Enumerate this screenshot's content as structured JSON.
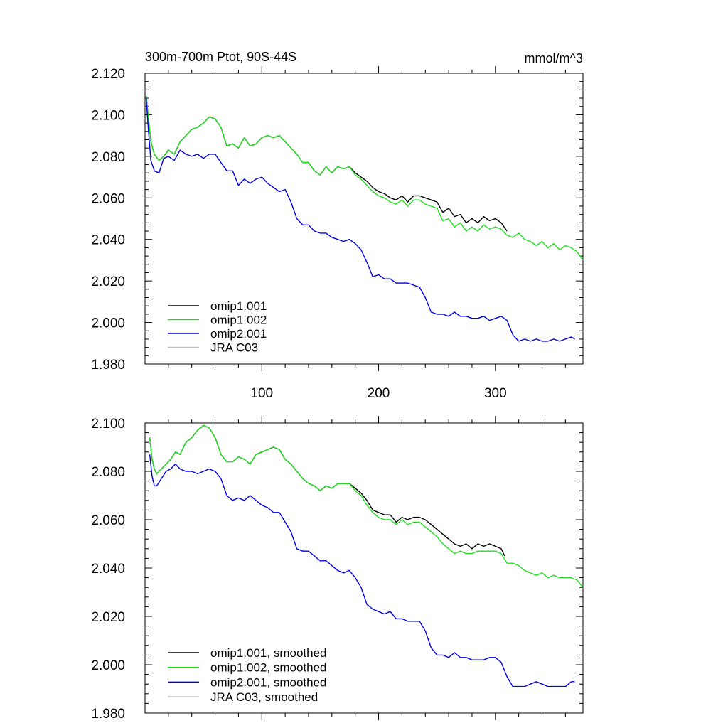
{
  "chart_data": [
    {
      "type": "line",
      "title": "300m-700m Ptot, 90S-44S",
      "units": "mmol/m^3",
      "xlim": [
        0,
        375
      ],
      "ylim": [
        1.98,
        2.12
      ],
      "yticks": [
        1.98,
        2.0,
        2.02,
        2.04,
        2.06,
        2.08,
        2.1,
        2.12
      ],
      "yticklabels": [
        "1.980",
        "2.000",
        "2.020",
        "2.040",
        "2.060",
        "2.080",
        "2.100",
        "2.120"
      ],
      "xticks": [
        100,
        200,
        300
      ],
      "xticklabels": [
        "100",
        "200",
        "300"
      ],
      "grid": false,
      "legend_position": "bottom-left",
      "series": [
        {
          "name": "omip1.001",
          "color": "#000000",
          "x": [
            1,
            3,
            5,
            8,
            12,
            16,
            20,
            25,
            30,
            35,
            40,
            45,
            50,
            55,
            60,
            65,
            70,
            75,
            80,
            85,
            90,
            95,
            100,
            105,
            110,
            115,
            120,
            125,
            130,
            135,
            140,
            145,
            150,
            155,
            160,
            165,
            170,
            175,
            180,
            185,
            190,
            195,
            200,
            205,
            210,
            215,
            220,
            225,
            230,
            235,
            240,
            245,
            250,
            255,
            260,
            265,
            270,
            275,
            280,
            285,
            290,
            295,
            300,
            305,
            310
          ],
          "y": [
            2.109,
            2.098,
            2.087,
            2.081,
            2.078,
            2.08,
            2.083,
            2.081,
            2.087,
            2.09,
            2.093,
            2.094,
            2.096,
            2.099,
            2.098,
            2.094,
            2.085,
            2.086,
            2.084,
            2.089,
            2.085,
            2.086,
            2.089,
            2.09,
            2.089,
            2.09,
            2.087,
            2.084,
            2.081,
            2.077,
            2.077,
            2.073,
            2.071,
            2.075,
            2.072,
            2.075,
            2.074,
            2.075,
            2.072,
            2.07,
            2.068,
            2.065,
            2.063,
            2.062,
            2.06,
            2.059,
            2.061,
            2.058,
            2.061,
            2.061,
            2.06,
            2.059,
            2.058,
            2.053,
            2.055,
            2.051,
            2.052,
            2.048,
            2.05,
            2.048,
            2.051,
            2.049,
            2.05,
            2.048,
            2.044
          ]
        },
        {
          "name": "omip1.002",
          "color": "#1ee11e",
          "x": [
            1,
            3,
            5,
            8,
            12,
            16,
            20,
            25,
            30,
            35,
            40,
            45,
            50,
            55,
            60,
            65,
            70,
            75,
            80,
            85,
            90,
            95,
            100,
            105,
            110,
            115,
            120,
            125,
            130,
            135,
            140,
            145,
            150,
            155,
            160,
            165,
            170,
            175,
            180,
            185,
            190,
            195,
            200,
            205,
            210,
            215,
            220,
            225,
            230,
            235,
            240,
            245,
            250,
            255,
            260,
            265,
            270,
            275,
            280,
            285,
            290,
            295,
            300,
            305,
            310,
            315,
            320,
            325,
            330,
            335,
            340,
            345,
            350,
            355,
            360,
            365,
            370,
            375
          ],
          "y": [
            2.109,
            2.098,
            2.087,
            2.081,
            2.078,
            2.08,
            2.083,
            2.081,
            2.087,
            2.09,
            2.093,
            2.094,
            2.096,
            2.099,
            2.098,
            2.094,
            2.085,
            2.086,
            2.084,
            2.089,
            2.085,
            2.086,
            2.089,
            2.09,
            2.089,
            2.09,
            2.087,
            2.084,
            2.081,
            2.077,
            2.077,
            2.073,
            2.071,
            2.075,
            2.072,
            2.075,
            2.074,
            2.075,
            2.071,
            2.069,
            2.066,
            2.063,
            2.061,
            2.06,
            2.058,
            2.057,
            2.059,
            2.056,
            2.059,
            2.059,
            2.057,
            2.056,
            2.055,
            2.049,
            2.05,
            2.046,
            2.048,
            2.044,
            2.046,
            2.044,
            2.047,
            2.045,
            2.046,
            2.045,
            2.042,
            2.041,
            2.043,
            2.04,
            2.039,
            2.037,
            2.039,
            2.036,
            2.038,
            2.035,
            2.037,
            2.036,
            2.034,
            2.03
          ]
        },
        {
          "name": "omip2.001",
          "color": "#0000e6",
          "x": [
            1,
            3,
            5,
            8,
            12,
            16,
            20,
            25,
            30,
            35,
            40,
            45,
            50,
            55,
            60,
            65,
            70,
            75,
            80,
            85,
            90,
            95,
            100,
            105,
            110,
            115,
            120,
            125,
            130,
            135,
            140,
            145,
            150,
            155,
            160,
            165,
            170,
            175,
            180,
            185,
            190,
            195,
            200,
            205,
            210,
            215,
            220,
            225,
            230,
            235,
            240,
            245,
            250,
            255,
            260,
            265,
            270,
            275,
            280,
            285,
            290,
            295,
            300,
            305,
            310,
            315,
            320,
            325,
            330,
            335,
            340,
            345,
            350,
            355,
            360,
            365,
            368
          ],
          "y": [
            2.108,
            2.092,
            2.078,
            2.073,
            2.072,
            2.079,
            2.08,
            2.078,
            2.083,
            2.081,
            2.08,
            2.081,
            2.079,
            2.081,
            2.081,
            2.077,
            2.073,
            2.073,
            2.066,
            2.069,
            2.067,
            2.069,
            2.07,
            2.067,
            2.065,
            2.063,
            2.064,
            2.058,
            2.05,
            2.047,
            2.047,
            2.044,
            2.043,
            2.043,
            2.041,
            2.04,
            2.039,
            2.04,
            2.038,
            2.035,
            2.029,
            2.022,
            2.023,
            2.021,
            2.021,
            2.019,
            2.019,
            2.019,
            2.018,
            2.017,
            2.012,
            2.005,
            2.004,
            2.004,
            2.003,
            2.005,
            2.003,
            2.003,
            2.002,
            2.002,
            2.003,
            2.001,
            2.002,
            2.003,
            2.001,
            1.994,
            1.991,
            1.992,
            1.991,
            1.992,
            1.991,
            1.991,
            1.992,
            1.991,
            1.992,
            1.993,
            1.992
          ]
        },
        {
          "name": "JRA C03",
          "color": "#c0c0c0",
          "x": [],
          "y": []
        }
      ]
    },
    {
      "type": "line",
      "title": "",
      "units": "",
      "xlim": [
        0,
        375
      ],
      "ylim": [
        1.98,
        2.1
      ],
      "yticks": [
        1.98,
        2.0,
        2.02,
        2.04,
        2.06,
        2.08,
        2.1
      ],
      "yticklabels": [
        "1.980",
        "2.000",
        "2.020",
        "2.040",
        "2.060",
        "2.080",
        "2.100"
      ],
      "xticks": [
        100,
        200,
        300
      ],
      "xticklabels": [],
      "grid": false,
      "legend_position": "bottom-left",
      "series": [
        {
          "name": "omip1.001, smoothed",
          "color": "#000000",
          "x": [
            4,
            6,
            8,
            10,
            14,
            18,
            22,
            26,
            30,
            35,
            40,
            45,
            50,
            55,
            60,
            65,
            70,
            75,
            80,
            85,
            90,
            95,
            100,
            105,
            110,
            115,
            120,
            125,
            130,
            135,
            140,
            145,
            150,
            155,
            160,
            165,
            170,
            175,
            180,
            185,
            190,
            195,
            200,
            205,
            210,
            215,
            220,
            225,
            230,
            235,
            240,
            245,
            250,
            255,
            260,
            265,
            270,
            275,
            280,
            285,
            290,
            295,
            300,
            305,
            308
          ],
          "y": [
            2.094,
            2.085,
            2.081,
            2.079,
            2.081,
            2.083,
            2.085,
            2.088,
            2.087,
            2.092,
            2.094,
            2.097,
            2.099,
            2.098,
            2.094,
            2.087,
            2.084,
            2.084,
            2.086,
            2.085,
            2.083,
            2.087,
            2.088,
            2.089,
            2.09,
            2.089,
            2.085,
            2.083,
            2.08,
            2.077,
            2.075,
            2.074,
            2.072,
            2.074,
            2.073,
            2.075,
            2.075,
            2.075,
            2.073,
            2.071,
            2.068,
            2.064,
            2.063,
            2.062,
            2.062,
            2.059,
            2.061,
            2.06,
            2.061,
            2.061,
            2.06,
            2.058,
            2.056,
            2.054,
            2.052,
            2.05,
            2.049,
            2.05,
            2.048,
            2.05,
            2.049,
            2.05,
            2.049,
            2.048,
            2.045
          ]
        },
        {
          "name": "omip1.002, smoothed",
          "color": "#1ee11e",
          "x": [
            4,
            6,
            8,
            10,
            14,
            18,
            22,
            26,
            30,
            35,
            40,
            45,
            50,
            55,
            60,
            65,
            70,
            75,
            80,
            85,
            90,
            95,
            100,
            105,
            110,
            115,
            120,
            125,
            130,
            135,
            140,
            145,
            150,
            155,
            160,
            165,
            170,
            175,
            180,
            185,
            190,
            195,
            200,
            205,
            210,
            215,
            220,
            225,
            230,
            235,
            240,
            245,
            250,
            255,
            260,
            265,
            270,
            275,
            280,
            285,
            290,
            295,
            300,
            305,
            310,
            315,
            320,
            325,
            330,
            335,
            340,
            345,
            350,
            355,
            360,
            365,
            370,
            375
          ],
          "y": [
            2.094,
            2.085,
            2.081,
            2.079,
            2.081,
            2.083,
            2.085,
            2.088,
            2.087,
            2.092,
            2.094,
            2.097,
            2.099,
            2.098,
            2.094,
            2.087,
            2.084,
            2.084,
            2.086,
            2.085,
            2.083,
            2.087,
            2.088,
            2.089,
            2.09,
            2.089,
            2.085,
            2.083,
            2.08,
            2.077,
            2.075,
            2.074,
            2.072,
            2.074,
            2.073,
            2.075,
            2.075,
            2.075,
            2.072,
            2.07,
            2.066,
            2.063,
            2.061,
            2.06,
            2.06,
            2.058,
            2.06,
            2.058,
            2.059,
            2.059,
            2.057,
            2.055,
            2.053,
            2.05,
            2.048,
            2.046,
            2.047,
            2.046,
            2.046,
            2.047,
            2.047,
            2.047,
            2.047,
            2.046,
            2.042,
            2.042,
            2.041,
            2.039,
            2.038,
            2.037,
            2.038,
            2.036,
            2.037,
            2.036,
            2.036,
            2.036,
            2.035,
            2.032
          ]
        },
        {
          "name": "omip2.001, smoothed",
          "color": "#0000e6",
          "x": [
            4,
            6,
            8,
            10,
            14,
            18,
            22,
            26,
            30,
            35,
            40,
            45,
            50,
            55,
            60,
            65,
            70,
            75,
            80,
            85,
            90,
            95,
            100,
            105,
            110,
            115,
            120,
            125,
            130,
            135,
            140,
            145,
            150,
            155,
            160,
            165,
            170,
            175,
            180,
            185,
            190,
            195,
            200,
            205,
            210,
            215,
            220,
            225,
            230,
            235,
            240,
            245,
            250,
            255,
            260,
            265,
            270,
            275,
            280,
            285,
            290,
            295,
            300,
            305,
            310,
            315,
            320,
            325,
            330,
            335,
            340,
            345,
            350,
            355,
            360,
            365,
            368
          ],
          "y": [
            2.087,
            2.078,
            2.074,
            2.074,
            2.077,
            2.08,
            2.081,
            2.083,
            2.081,
            2.08,
            2.08,
            2.079,
            2.08,
            2.081,
            2.08,
            2.077,
            2.07,
            2.068,
            2.069,
            2.068,
            2.07,
            2.068,
            2.066,
            2.065,
            2.063,
            2.063,
            2.059,
            2.055,
            2.048,
            2.047,
            2.047,
            2.045,
            2.043,
            2.043,
            2.041,
            2.039,
            2.038,
            2.039,
            2.036,
            2.032,
            2.025,
            2.023,
            2.022,
            2.021,
            2.022,
            2.019,
            2.019,
            2.018,
            2.018,
            2.018,
            2.014,
            2.007,
            2.004,
            2.004,
            2.003,
            2.005,
            2.003,
            2.003,
            2.002,
            2.002,
            2.002,
            2.003,
            2.003,
            2.001,
            1.995,
            1.991,
            1.991,
            1.991,
            1.992,
            1.993,
            1.992,
            1.991,
            1.991,
            1.991,
            1.991,
            1.993,
            1.993
          ]
        },
        {
          "name": "JRA C03, smoothed",
          "color": "#c0c0c0",
          "x": [],
          "y": []
        }
      ]
    }
  ]
}
